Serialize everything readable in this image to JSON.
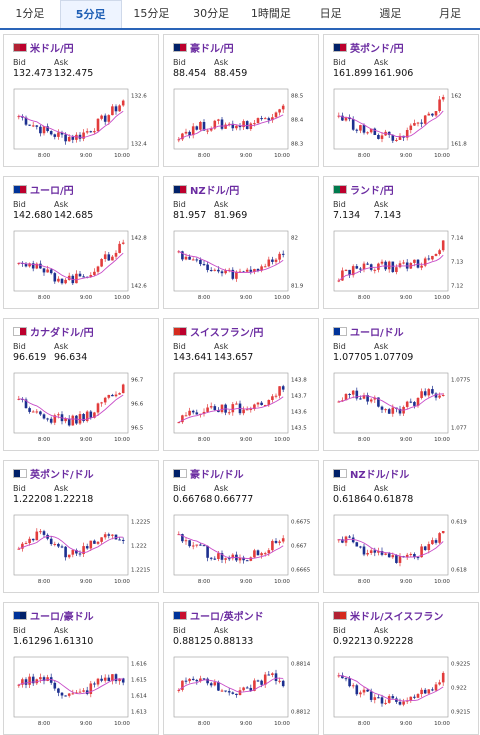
{
  "tabs": [
    {
      "label": "1分足",
      "active": false
    },
    {
      "label": "5分足",
      "active": true
    },
    {
      "label": "15分足",
      "active": false
    },
    {
      "label": "30分足",
      "active": false
    },
    {
      "label": "1時間足",
      "active": false
    },
    {
      "label": "日足",
      "active": false
    },
    {
      "label": "週足",
      "active": false
    },
    {
      "label": "月足",
      "active": false
    }
  ],
  "bid_label": "Bid",
  "ask_label": "Ask",
  "time_labels": [
    "8:00",
    "9:00",
    "10:00"
  ],
  "colors": {
    "up": "#e23c3c",
    "down": "#1c2f8f",
    "ma": "#c84cc8",
    "accent": "#2a64b8",
    "pair_name": "#6b2ca1"
  },
  "cards": [
    {
      "pair": "米ドル/円",
      "flag": "us-jp",
      "bid": "132.473",
      "ask": "132.475",
      "y_ticks": [
        "132.6",
        "132.4"
      ],
      "shape": "w"
    },
    {
      "pair": "豪ドル/円",
      "flag": "au-jp",
      "bid": "88.454",
      "ask": "88.459",
      "y_ticks": [
        "88.5",
        "88.4",
        "88.3"
      ],
      "shape": "rise"
    },
    {
      "pair": "英ポンド/円",
      "flag": "gb-jp",
      "bid": "161.899",
      "ask": "161.906",
      "y_ticks": [
        "162",
        "161.8"
      ],
      "shape": "w"
    },
    {
      "pair": "ユーロ/円",
      "flag": "eu-jp",
      "bid": "142.680",
      "ask": "142.685",
      "y_ticks": [
        "142.8",
        "142.6"
      ],
      "shape": "w"
    },
    {
      "pair": "NZドル/円",
      "flag": "nz-jp",
      "bid": "81.957",
      "ask": "81.969",
      "y_ticks": [
        "82",
        "81.9"
      ],
      "shape": "dip"
    },
    {
      "pair": "ランド/円",
      "flag": "za-jp",
      "bid": "7.134",
      "ask": "7.143",
      "y_ticks": [
        "7.14",
        "7.13",
        "7.12"
      ],
      "shape": "rise"
    },
    {
      "pair": "カナダドル/円",
      "flag": "ca-jp",
      "bid": "96.619",
      "ask": "96.634",
      "y_ticks": [
        "96.7",
        "96.6",
        "96.5"
      ],
      "shape": "w"
    },
    {
      "pair": "スイスフラン/円",
      "flag": "ch-jp",
      "bid": "143.641",
      "ask": "143.657",
      "y_ticks": [
        "143.8",
        "143.7",
        "143.6",
        "143.5"
      ],
      "shape": "rise"
    },
    {
      "pair": "ユーロ/ドル",
      "flag": "eu-us",
      "bid": "1.07705",
      "ask": "1.07709",
      "y_ticks": [
        "1.0775",
        "1.077"
      ],
      "shape": "flat"
    },
    {
      "pair": "英ポンド/ドル",
      "flag": "gb-us",
      "bid": "1.22208",
      "ask": "1.22218",
      "y_ticks": [
        "1.2225",
        "1.222",
        "1.2215"
      ],
      "shape": "flat"
    },
    {
      "pair": "豪ドル/ドル",
      "flag": "au-us",
      "bid": "0.66768",
      "ask": "0.66777",
      "y_ticks": [
        "0.6675",
        "0.667",
        "0.6665"
      ],
      "shape": "dip"
    },
    {
      "pair": "NZドル/ドル",
      "flag": "nz-us",
      "bid": "0.61864",
      "ask": "0.61878",
      "y_ticks": [
        "0.619",
        "0.618"
      ],
      "shape": "dip"
    },
    {
      "pair": "ユーロ/豪ドル",
      "flag": "eu-au",
      "bid": "1.61296",
      "ask": "1.61310",
      "y_ticks": [
        "1.616",
        "1.615",
        "1.614",
        "1.613"
      ],
      "shape": "flat"
    },
    {
      "pair": "ユーロ/英ポンド",
      "flag": "eu-gb",
      "bid": "0.88125",
      "ask": "0.88133",
      "y_ticks": [
        "0.8814",
        "0.8812"
      ],
      "shape": "flat"
    },
    {
      "pair": "米ドル/スイスフラン",
      "flag": "us-ch",
      "bid": "0.92213",
      "ask": "0.92228",
      "y_ticks": [
        "0.9225",
        "0.922",
        "0.9215"
      ],
      "shape": "dip"
    }
  ]
}
